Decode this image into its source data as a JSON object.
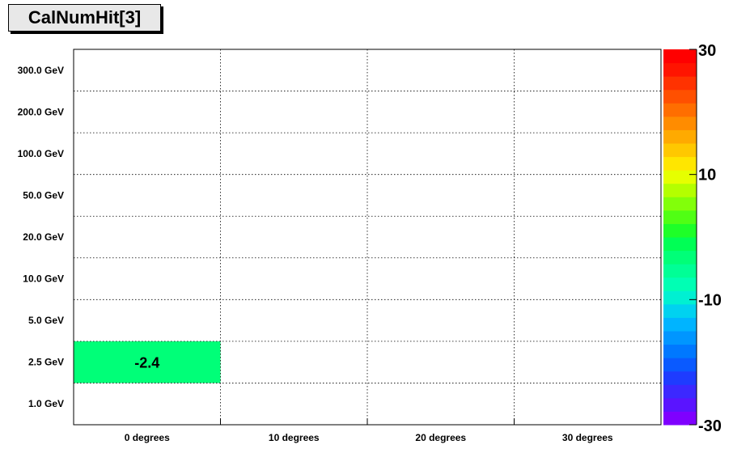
{
  "title": "CalNumHit[3]",
  "chart_data": {
    "type": "heatmap",
    "title": "CalNumHit[3]",
    "x_categories": [
      "0 degrees",
      "10 degrees",
      "20 degrees",
      "30 degrees"
    ],
    "y_categories": [
      "1.0 GeV",
      "2.5 GeV",
      "5.0 GeV",
      "10.0 GeV",
      "20.0 GeV",
      "50.0 GeV",
      "100.0 GeV",
      "200.0 GeV",
      "300.0 GeV"
    ],
    "cells": [
      {
        "x": "0 degrees",
        "y": "2.5 GeV",
        "value": -2.4,
        "label": "-2.4"
      }
    ],
    "zlim": [
      -30,
      30
    ],
    "colorbar_ticks": [
      "30",
      "10",
      "-10",
      "-30"
    ],
    "colorbar_tick_values": [
      30,
      10,
      -10,
      -30
    ],
    "grid": true,
    "palette": [
      "#7f00ff",
      "#5a14ff",
      "#3c28ff",
      "#1e3cff",
      "#0a5aff",
      "#0078ff",
      "#0096ff",
      "#00b4ff",
      "#00d2f0",
      "#00f0d2",
      "#00ffb4",
      "#00ff96",
      "#00ff78",
      "#00ff55",
      "#1eff28",
      "#50ff14",
      "#82ff0a",
      "#b4ff00",
      "#e6ff00",
      "#ffe600",
      "#ffc800",
      "#ffaa00",
      "#ff8c00",
      "#ff6e00",
      "#ff5000",
      "#ff3200",
      "#ff1400",
      "#ff0000"
    ],
    "cell_label_color": "#000000"
  }
}
